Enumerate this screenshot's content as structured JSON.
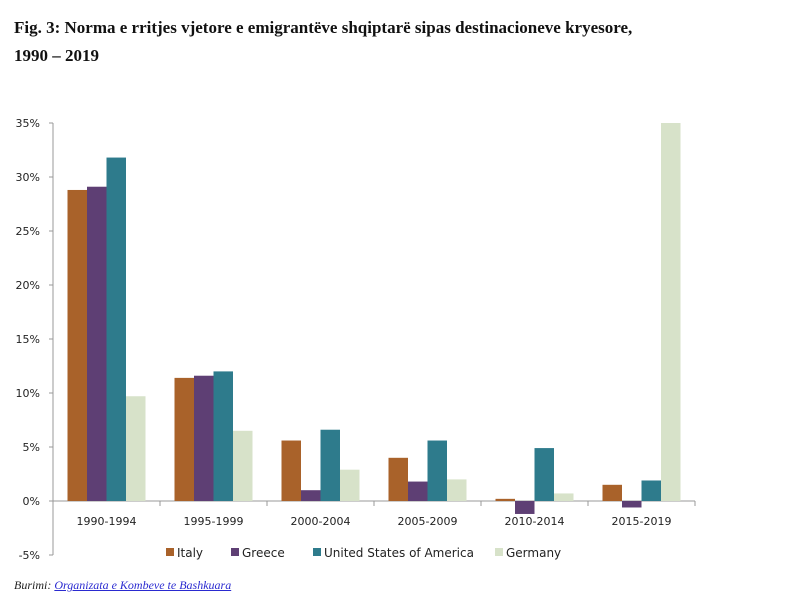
{
  "title_line1": "Fig. 3: Norma e rritjes vjetore e emigrantëve shqiptarë sipas destinacioneve kryesore,",
  "title_line2": "1990 – 2019",
  "source_label": "Burimi:",
  "source_link": "Organizata e Kombeve te Bashkuara",
  "chart_data": {
    "type": "bar",
    "title": "Norma e rritjes vjetore e emigrantëve shqiptarë sipas destinacioneve kryesore, 1990 – 2019",
    "xlabel": "",
    "ylabel": "",
    "ylim": [
      -5,
      35
    ],
    "yticks": [
      "-5%",
      "0%",
      "5%",
      "10%",
      "15%",
      "20%",
      "25%",
      "30%",
      "35%"
    ],
    "ytick_values": [
      -5,
      0,
      5,
      10,
      15,
      20,
      25,
      30,
      35
    ],
    "categories": [
      "1990-1994",
      "1995-1999",
      "2000-2004",
      "2005-2009",
      "2010-2014",
      "2015-2019"
    ],
    "legend_position": "bottom",
    "grid": false,
    "series": [
      {
        "name": "Italy",
        "color": "#A9622A",
        "values": [
          28.8,
          11.4,
          5.6,
          4.0,
          0.2,
          1.5
        ]
      },
      {
        "name": "Greece",
        "color": "#5E3F74",
        "values": [
          29.1,
          11.6,
          1.0,
          1.8,
          -1.2,
          -0.6
        ]
      },
      {
        "name": "United States of America",
        "color": "#2E7B8C",
        "values": [
          31.8,
          12.0,
          6.6,
          5.6,
          4.9,
          1.9
        ]
      },
      {
        "name": "Germany",
        "color": "#D7E2C9",
        "values": [
          9.7,
          6.5,
          2.9,
          2.0,
          0.7,
          35.0
        ]
      }
    ]
  }
}
